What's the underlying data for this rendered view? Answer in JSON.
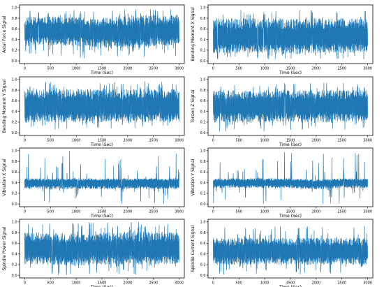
{
  "chart_data": [
    {
      "type": "line",
      "xlabel": "Time (Sec)",
      "ylabel": "Axial Force Signal",
      "xlim": [
        -100,
        3100
      ],
      "ylim": [
        -0.05,
        1.05
      ],
      "xticks": [
        "0",
        "500",
        "1000",
        "1500",
        "2000",
        "2500",
        "3000"
      ],
      "yticks": [
        "0.0",
        "0.2",
        "0.4",
        "0.6",
        "0.8",
        "1.0"
      ],
      "grid": false,
      "color": "#1f77b4",
      "series": [
        {
          "x": [
            0,
            500,
            1000,
            1500,
            2000,
            2500,
            3000
          ],
          "center": [
            0.55,
            0.57,
            0.55,
            0.53,
            0.52,
            0.55,
            0.56
          ],
          "envelope_low": [
            0.28,
            0.3,
            0.28,
            0.25,
            0.22,
            0.27,
            0.3
          ],
          "envelope_high": [
            0.82,
            0.83,
            0.82,
            0.8,
            0.85,
            0.86,
            0.84
          ],
          "min": 0.05,
          "max": 0.97
        }
      ]
    },
    {
      "type": "line",
      "xlabel": "Time (Sec)",
      "ylabel": "Bending Moment X Signal",
      "xlim": [
        -100,
        3100
      ],
      "ylim": [
        -0.05,
        1.05
      ],
      "xticks": [
        "0",
        "500",
        "1000",
        "1500",
        "2000",
        "2500",
        "3000"
      ],
      "yticks": [
        "0.0",
        "0.2",
        "0.4",
        "0.6",
        "0.8",
        "1.0"
      ],
      "grid": false,
      "color": "#1f77b4",
      "series": [
        {
          "x": [
            0,
            500,
            1000,
            1500,
            2000,
            2500,
            3000
          ],
          "center": [
            0.45,
            0.45,
            0.45,
            0.44,
            0.45,
            0.45,
            0.45
          ],
          "envelope_low": [
            0.15,
            0.15,
            0.15,
            0.12,
            0.15,
            0.15,
            0.15
          ],
          "envelope_high": [
            0.8,
            0.8,
            0.8,
            0.78,
            0.8,
            0.8,
            0.8
          ],
          "min": 0.02,
          "max": 0.97
        }
      ]
    },
    {
      "type": "line",
      "xlabel": "Time (Sec)",
      "ylabel": "Bending Moment Y Signal",
      "xlim": [
        -100,
        3100
      ],
      "ylim": [
        -0.05,
        1.05
      ],
      "xticks": [
        "0",
        "500",
        "1000",
        "1500",
        "2000",
        "2500",
        "3000"
      ],
      "yticks": [
        "0.0",
        "0.2",
        "0.4",
        "0.6",
        "0.8",
        "1.0"
      ],
      "grid": false,
      "color": "#1f77b4",
      "series": [
        {
          "x": [
            0,
            500,
            1000,
            1500,
            2000,
            2500,
            3000
          ],
          "center": [
            0.5,
            0.5,
            0.5,
            0.5,
            0.5,
            0.5,
            0.5
          ],
          "envelope_low": [
            0.2,
            0.2,
            0.2,
            0.2,
            0.2,
            0.2,
            0.2
          ],
          "envelope_high": [
            0.82,
            0.82,
            0.82,
            0.82,
            0.82,
            0.82,
            0.82
          ],
          "min": 0.05,
          "max": 0.97
        }
      ]
    },
    {
      "type": "line",
      "xlabel": "Time (Sec)",
      "ylabel": "Torsion Z Signal",
      "xlim": [
        -100,
        3100
      ],
      "ylim": [
        -0.05,
        1.05
      ],
      "xticks": [
        "0",
        "500",
        "1000",
        "1500",
        "2000",
        "2500",
        "3000"
      ],
      "yticks": [
        "0.0",
        "0.2",
        "0.4",
        "0.6",
        "0.8",
        "1.0"
      ],
      "grid": false,
      "color": "#1f77b4",
      "series": [
        {
          "x": [
            0,
            500,
            1000,
            1500,
            2000,
            2500,
            3000
          ],
          "center": [
            0.5,
            0.5,
            0.5,
            0.5,
            0.5,
            0.5,
            0.5
          ],
          "envelope_low": [
            0.2,
            0.2,
            0.2,
            0.2,
            0.2,
            0.2,
            0.2
          ],
          "envelope_high": [
            0.8,
            0.8,
            0.8,
            0.8,
            0.8,
            0.8,
            0.8
          ],
          "min": 0.02,
          "max": 0.95
        }
      ]
    },
    {
      "type": "line",
      "xlabel": "Time (Sec)",
      "ylabel": "Vibration X Signal",
      "xlim": [
        -100,
        3100
      ],
      "ylim": [
        -0.05,
        1.05
      ],
      "xticks": [
        "0",
        "500",
        "1000",
        "1500",
        "2000",
        "2500",
        "3000"
      ],
      "yticks": [
        "0.0",
        "0.2",
        "0.4",
        "0.6",
        "0.8",
        "1.0"
      ],
      "grid": false,
      "color": "#1f77b4",
      "series": [
        {
          "x": [
            0,
            500,
            1000,
            1500,
            2000,
            2500,
            3000
          ],
          "center": [
            0.4,
            0.4,
            0.4,
            0.4,
            0.4,
            0.4,
            0.4
          ],
          "envelope_low": [
            0.28,
            0.28,
            0.28,
            0.28,
            0.28,
            0.28,
            0.28
          ],
          "envelope_high": [
            0.48,
            0.48,
            0.48,
            0.48,
            0.48,
            0.48,
            0.48
          ],
          "min": 0.0,
          "max": 1.0
        }
      ]
    },
    {
      "type": "line",
      "xlabel": "Time (Sec)",
      "ylabel": "Vibration Y Signal",
      "xlim": [
        -100,
        3100
      ],
      "ylim": [
        -0.05,
        1.05
      ],
      "xticks": [
        "0",
        "500",
        "1000",
        "1500",
        "2000",
        "2500",
        "3000"
      ],
      "yticks": [
        "0.0",
        "0.2",
        "0.4",
        "0.6",
        "0.8",
        "1.0"
      ],
      "grid": false,
      "color": "#1f77b4",
      "series": [
        {
          "x": [
            0,
            500,
            1000,
            1500,
            2000,
            2500,
            3000
          ],
          "center": [
            0.4,
            0.4,
            0.4,
            0.4,
            0.38,
            0.4,
            0.4
          ],
          "envelope_low": [
            0.3,
            0.3,
            0.3,
            0.3,
            0.28,
            0.3,
            0.3
          ],
          "envelope_high": [
            0.48,
            0.48,
            0.48,
            0.48,
            0.46,
            0.48,
            0.48
          ],
          "min": 0.0,
          "max": 1.0
        }
      ]
    },
    {
      "type": "line",
      "xlabel": "Time (Sec)",
      "ylabel": "Spindle Power Signal",
      "xlim": [
        -100,
        3100
      ],
      "ylim": [
        -0.05,
        1.05
      ],
      "xticks": [
        "0",
        "500",
        "1000",
        "1500",
        "2000",
        "2500",
        "3000"
      ],
      "yticks": [
        "0.0",
        "0.2",
        "0.4",
        "0.6",
        "0.8",
        "1.0"
      ],
      "grid": false,
      "color": "#1f77b4",
      "series": [
        {
          "x": [
            0,
            500,
            1000,
            1500,
            2000,
            2500,
            3000
          ],
          "center": [
            0.5,
            0.5,
            0.48,
            0.5,
            0.5,
            0.5,
            0.5
          ],
          "envelope_low": [
            0.2,
            0.2,
            0.18,
            0.2,
            0.2,
            0.2,
            0.2
          ],
          "envelope_high": [
            0.8,
            0.8,
            0.78,
            0.8,
            0.82,
            0.82,
            0.8
          ],
          "min": 0.0,
          "max": 1.0
        }
      ]
    },
    {
      "type": "line",
      "xlabel": "Time (Sec)",
      "ylabel": "Spindle Current Signal",
      "xlim": [
        -100,
        3100
      ],
      "ylim": [
        -0.05,
        1.05
      ],
      "xticks": [
        "0",
        "500",
        "1000",
        "1500",
        "2000",
        "2500",
        "3000"
      ],
      "yticks": [
        "0.0",
        "0.2",
        "0.4",
        "0.6",
        "0.8",
        "1.0"
      ],
      "grid": false,
      "color": "#1f77b4",
      "series": [
        {
          "x": [
            0,
            500,
            1000,
            1500,
            2000,
            2500,
            3000
          ],
          "center": [
            0.45,
            0.45,
            0.45,
            0.45,
            0.45,
            0.45,
            0.45
          ],
          "envelope_low": [
            0.2,
            0.2,
            0.2,
            0.2,
            0.2,
            0.2,
            0.2
          ],
          "envelope_high": [
            0.7,
            0.7,
            0.7,
            0.7,
            0.7,
            0.7,
            0.7
          ],
          "min": 0.0,
          "max": 0.92
        }
      ]
    }
  ]
}
